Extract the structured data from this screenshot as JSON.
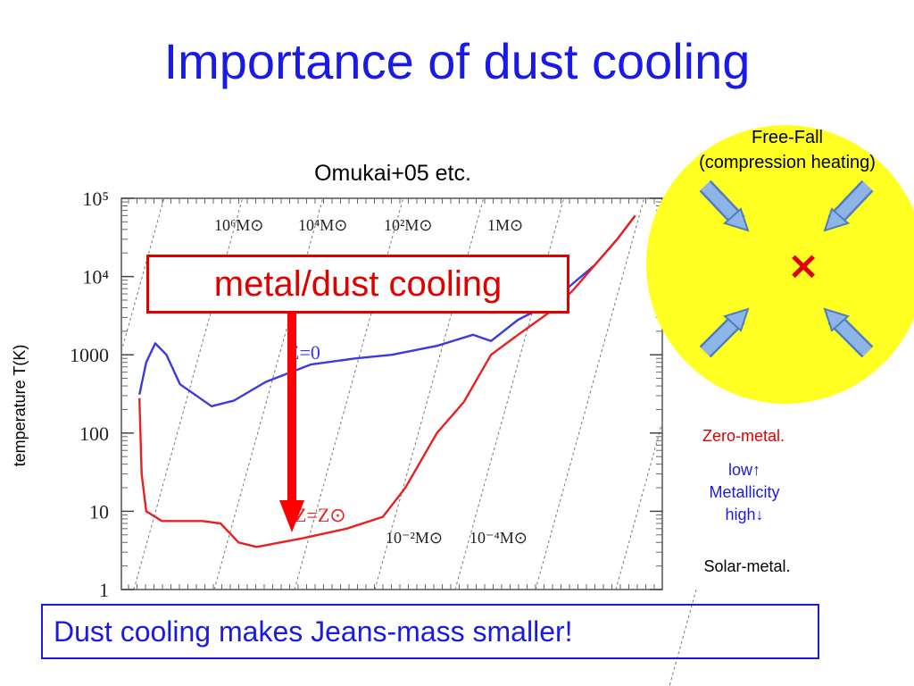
{
  "slide": {
    "title": "Importance of dust cooling",
    "subtitle": "Omukai+05 etc.",
    "freefall_line1": "Free-Fall",
    "freefall_line2": "(compression heating)",
    "callout": "metal/dust cooling",
    "zero_metal": "Zero-metal.",
    "low": "low↑",
    "metallicity": "Metallicity",
    "high": "high↓",
    "solar_metal": "Solar-metal.",
    "bottom_text": "Dust cooling makes Jeans-mass smaller!",
    "y_axis_label": "temperature T(K)",
    "heating_mark": "×"
  },
  "colors": {
    "title": "#1a1ae6",
    "callout": "#e00000",
    "circle": "#ffff22",
    "arrow": "#7aa7e0",
    "zero_metal_curve": "#3a3ae0",
    "solar_metal_curve": "#e82020"
  },
  "chart_data": {
    "type": "line",
    "y_scale": "log",
    "ylim": [
      1,
      100000
    ],
    "y_ticks": [
      {
        "value": 100000,
        "label": "10⁵"
      },
      {
        "value": 10000,
        "label": "10⁴"
      },
      {
        "value": 1000,
        "label": "1000"
      },
      {
        "value": 100,
        "label": "100"
      },
      {
        "value": 10,
        "label": "10"
      },
      {
        "value": 1,
        "label": "1"
      }
    ],
    "grid": false,
    "jeans_mass_lines": [
      {
        "label": "10⁶M⊙",
        "x": 0.265
      },
      {
        "label": "10⁴M⊙",
        "x": 0.398
      },
      {
        "label": "10²M⊙",
        "x": 0.523
      },
      {
        "label": "1M⊙",
        "x": 0.69
      },
      {
        "label": "10⁻²M⊙",
        "x": 0.615
      },
      {
        "label": "10⁻⁴M⊙",
        "x": 0.759
      }
    ],
    "series": [
      {
        "name": "Z=0",
        "points": [
          [
            0.04,
            310
          ],
          [
            0.055,
            800
          ],
          [
            0.075,
            1400
          ],
          [
            0.1,
            1000
          ],
          [
            0.13,
            420
          ],
          [
            0.2,
            220
          ],
          [
            0.25,
            260
          ],
          [
            0.32,
            450
          ],
          [
            0.42,
            750
          ],
          [
            0.52,
            900
          ],
          [
            0.6,
            1000
          ],
          [
            0.7,
            1300
          ],
          [
            0.78,
            1800
          ],
          [
            0.82,
            1500
          ],
          [
            0.88,
            2800
          ],
          [
            0.95,
            4500
          ],
          [
            1.0,
            8000
          ],
          [
            1.05,
            14000
          ],
          [
            1.1,
            30000
          ],
          [
            1.14,
            60000
          ]
        ]
      },
      {
        "name": "Z=Z⊙",
        "points": [
          [
            0.04,
            280
          ],
          [
            0.045,
            30
          ],
          [
            0.055,
            10
          ],
          [
            0.09,
            7.5
          ],
          [
            0.18,
            7.5
          ],
          [
            0.22,
            7
          ],
          [
            0.26,
            4
          ],
          [
            0.3,
            3.5
          ],
          [
            0.4,
            4.5
          ],
          [
            0.5,
            6
          ],
          [
            0.58,
            8.5
          ],
          [
            0.63,
            20
          ],
          [
            0.7,
            100
          ],
          [
            0.76,
            250
          ],
          [
            0.82,
            1000
          ],
          [
            0.88,
            1800
          ],
          [
            0.95,
            3500
          ],
          [
            1.0,
            6500
          ],
          [
            1.05,
            14000
          ],
          [
            1.1,
            30000
          ],
          [
            1.14,
            60000
          ]
        ]
      }
    ]
  }
}
